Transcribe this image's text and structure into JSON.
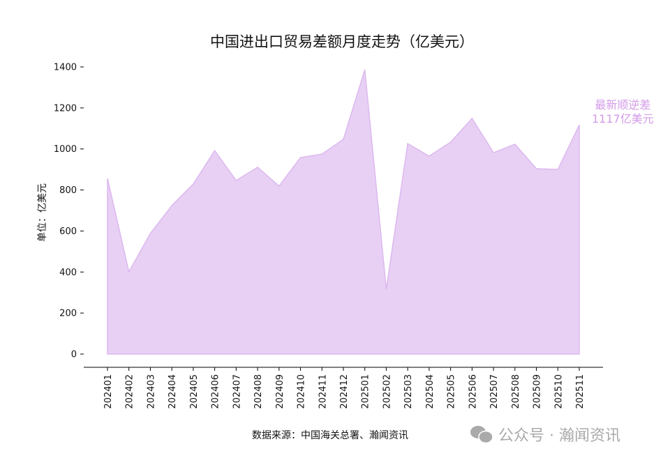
{
  "chart_data": {
    "type": "area",
    "title": "中国进出口贸易差额月度走势（亿美元）",
    "ylabel": "单位：亿美元",
    "xlabel": "",
    "categories": [
      "202401",
      "202402",
      "202403",
      "202404",
      "202405",
      "202406",
      "202407",
      "202408",
      "202409",
      "202410",
      "202411",
      "202412",
      "202501",
      "202502",
      "202503",
      "202504",
      "202505",
      "202506",
      "202507",
      "202508",
      "202509",
      "202510",
      "202511"
    ],
    "values": [
      856,
      401,
      588,
      724,
      829,
      992,
      846,
      911,
      819,
      958,
      975,
      1047,
      1386,
      316,
      1026,
      965,
      1033,
      1149,
      982,
      1023,
      904,
      900,
      1117
    ],
    "ylim": [
      0,
      1400
    ],
    "yticks": [
      0,
      200,
      400,
      600,
      800,
      1000,
      1200,
      1400
    ],
    "grid": false,
    "fill_color": "#e8d0f4",
    "line_color": "#dcb8ef",
    "annotation": {
      "line1": "最新顺逆差",
      "line2": "1117亿美元",
      "color": "#d49be8"
    }
  },
  "source": "数据来源：中国海关总署、瀚闻资讯",
  "watermark": "公众号 · 瀚闻资讯"
}
